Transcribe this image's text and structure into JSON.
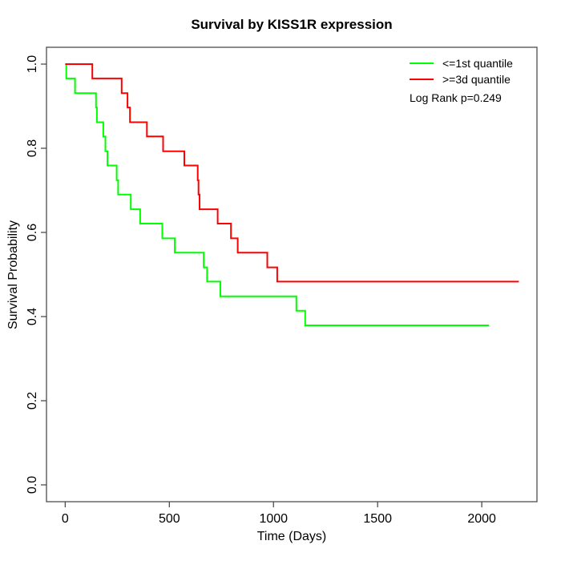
{
  "colors": {
    "background": "#ffffff",
    "axis": "#4d4d4d",
    "text": "#000000",
    "low_quantile_line": "#00ff00",
    "high_quantile_line": "#ff0000"
  },
  "chart_data": {
    "type": "line",
    "variant": "kaplan-meier-step",
    "title": "Survival by KISS1R expression",
    "xlabel": "Time (Days)",
    "ylabel": "Survival Probability",
    "x_ticks": [
      0,
      500,
      1000,
      1500,
      2000
    ],
    "x_tick_labels": [
      "0",
      "500",
      "1000",
      "1500",
      "2000"
    ],
    "y_ticks": [
      0.0,
      0.2,
      0.4,
      0.6,
      0.8,
      1.0
    ],
    "y_tick_labels": [
      "0.0",
      "0.2",
      "0.4",
      "0.6",
      "0.8",
      "1.0"
    ],
    "xlim": [
      -90,
      2265
    ],
    "ylim": [
      -0.04,
      1.04
    ],
    "grid": false,
    "legend_position": "topright",
    "annotation": "Log Rank p=0.249",
    "series": [
      {
        "name": "<=1st quantile",
        "color": "#00ff00",
        "start": [
          0,
          1.0
        ],
        "points": [
          [
            5,
            0.966
          ],
          [
            47,
            0.931
          ],
          [
            148,
            0.897
          ],
          [
            152,
            0.862
          ],
          [
            183,
            0.828
          ],
          [
            193,
            0.793
          ],
          [
            203,
            0.759
          ],
          [
            247,
            0.724
          ],
          [
            254,
            0.69
          ],
          [
            315,
            0.655
          ],
          [
            360,
            0.621
          ],
          [
            466,
            0.586
          ],
          [
            526,
            0.552
          ],
          [
            665,
            0.517
          ],
          [
            681,
            0.483
          ],
          [
            745,
            0.448
          ],
          [
            1110,
            0.414
          ],
          [
            1152,
            0.379
          ]
        ],
        "end_time": 2035
      },
      {
        "name": ">=3d quantile",
        "color": "#ff0000",
        "start": [
          0,
          1.0
        ],
        "points": [
          [
            130,
            0.966
          ],
          [
            271,
            0.931
          ],
          [
            299,
            0.897
          ],
          [
            311,
            0.862
          ],
          [
            392,
            0.828
          ],
          [
            470,
            0.793
          ],
          [
            572,
            0.759
          ],
          [
            636,
            0.724
          ],
          [
            640,
            0.69
          ],
          [
            645,
            0.655
          ],
          [
            732,
            0.621
          ],
          [
            796,
            0.586
          ],
          [
            828,
            0.552
          ],
          [
            970,
            0.517
          ],
          [
            1018,
            0.483
          ]
        ],
        "end_time": 2178
      }
    ]
  }
}
